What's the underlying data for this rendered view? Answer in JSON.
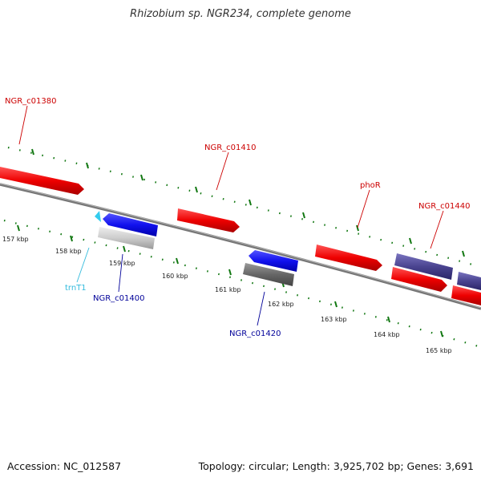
{
  "title": "Rhizobium sp. NGR234, complete genome",
  "footer": {
    "accession": "Accession: NC_012587",
    "summary": "Topology: circular; Length: 3,925,702 bp; Genes: 3,691"
  },
  "scale_labels": [
    "157 kbp",
    "158 kbp",
    "159 kbp",
    "160 kbp",
    "161 kbp",
    "162 kbp",
    "163 kbp",
    "164 kbp",
    "165 kbp"
  ],
  "genes": [
    {
      "id": "NGR_c01380",
      "label": "NGR_c01380",
      "strand": "+",
      "color": "#cc0000"
    },
    {
      "id": "NGR_c01410",
      "label": "NGR_c01410",
      "strand": "+",
      "color": "#cc0000"
    },
    {
      "id": "phoR",
      "label": "phoR",
      "strand": "+",
      "color": "#cc0000"
    },
    {
      "id": "NGR_c01440",
      "label": "NGR_c01440",
      "strand": "+",
      "color": "#cc0000"
    },
    {
      "id": "trnT1",
      "label": "trnT1",
      "strand": "-",
      "color": "#33bbdd"
    },
    {
      "id": "NGR_c01400",
      "label": "NGR_c01400",
      "strand": "-",
      "color": "#000099"
    },
    {
      "id": "NGR_c01420",
      "label": "NGR_c01420",
      "strand": "-",
      "color": "#000099"
    }
  ],
  "colors": {
    "plus_cds": "#ee1111",
    "minus_cds": "#1111ee",
    "rna": "#33ccee",
    "pseudo_grey": "#c8c8c8",
    "dark_grey": "#666666",
    "purple": "#4a4490",
    "ruler": "#117711"
  }
}
